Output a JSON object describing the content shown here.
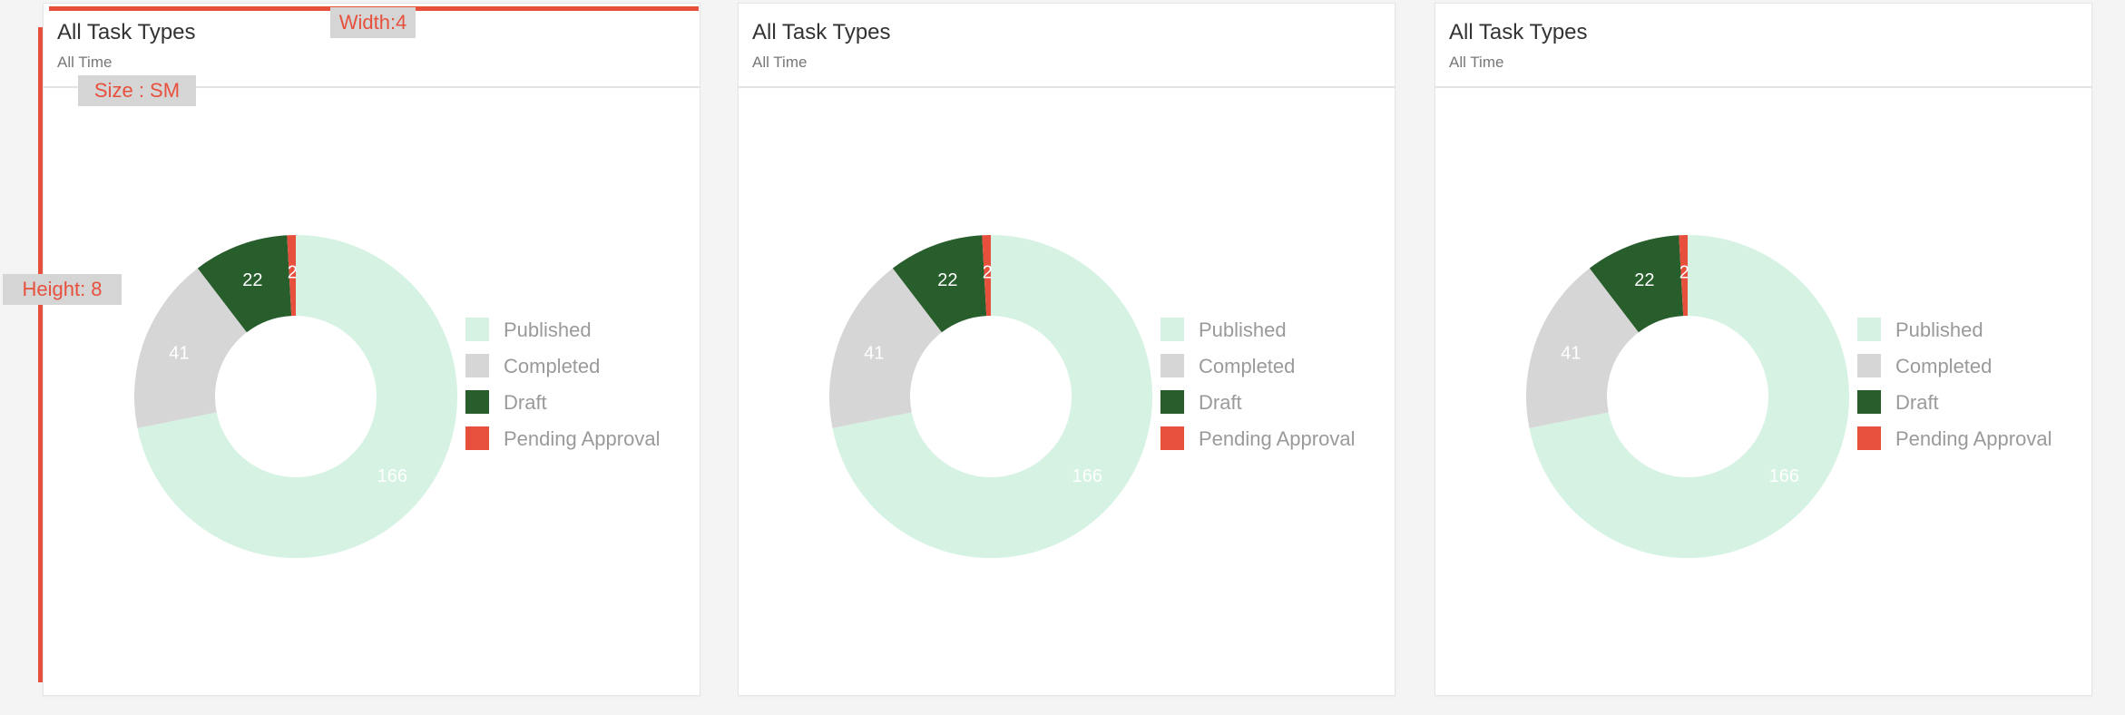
{
  "colors": {
    "published": "#d5f2e3",
    "completed": "#d6d6d6",
    "draft": "#275e2c",
    "pending": "#e8503e",
    "legend_text": "#9a9a9a",
    "annotation": "#e8503e"
  },
  "annotations": {
    "width_label": "Width:4",
    "size_label": "Size : SM",
    "height_label": "Height: 8"
  },
  "cards": [
    {
      "title": "All Task Types",
      "subtitle": "All Time",
      "chart_data": {
        "type": "donut",
        "categories": [
          "Published",
          "Completed",
          "Draft",
          "Pending Approval"
        ],
        "values": [
          166,
          41,
          22,
          2
        ],
        "legend_position": "right"
      }
    },
    {
      "title": "All Task Types",
      "subtitle": "All Time",
      "chart_data": {
        "type": "donut",
        "categories": [
          "Published",
          "Completed",
          "Draft",
          "Pending Approval"
        ],
        "values": [
          166,
          41,
          22,
          2
        ],
        "legend_position": "right"
      }
    },
    {
      "title": "All Task Types",
      "subtitle": "All Time",
      "chart_data": {
        "type": "donut",
        "categories": [
          "Published",
          "Completed",
          "Draft",
          "Pending Approval"
        ],
        "values": [
          166,
          41,
          22,
          2
        ],
        "legend_position": "right"
      }
    }
  ]
}
